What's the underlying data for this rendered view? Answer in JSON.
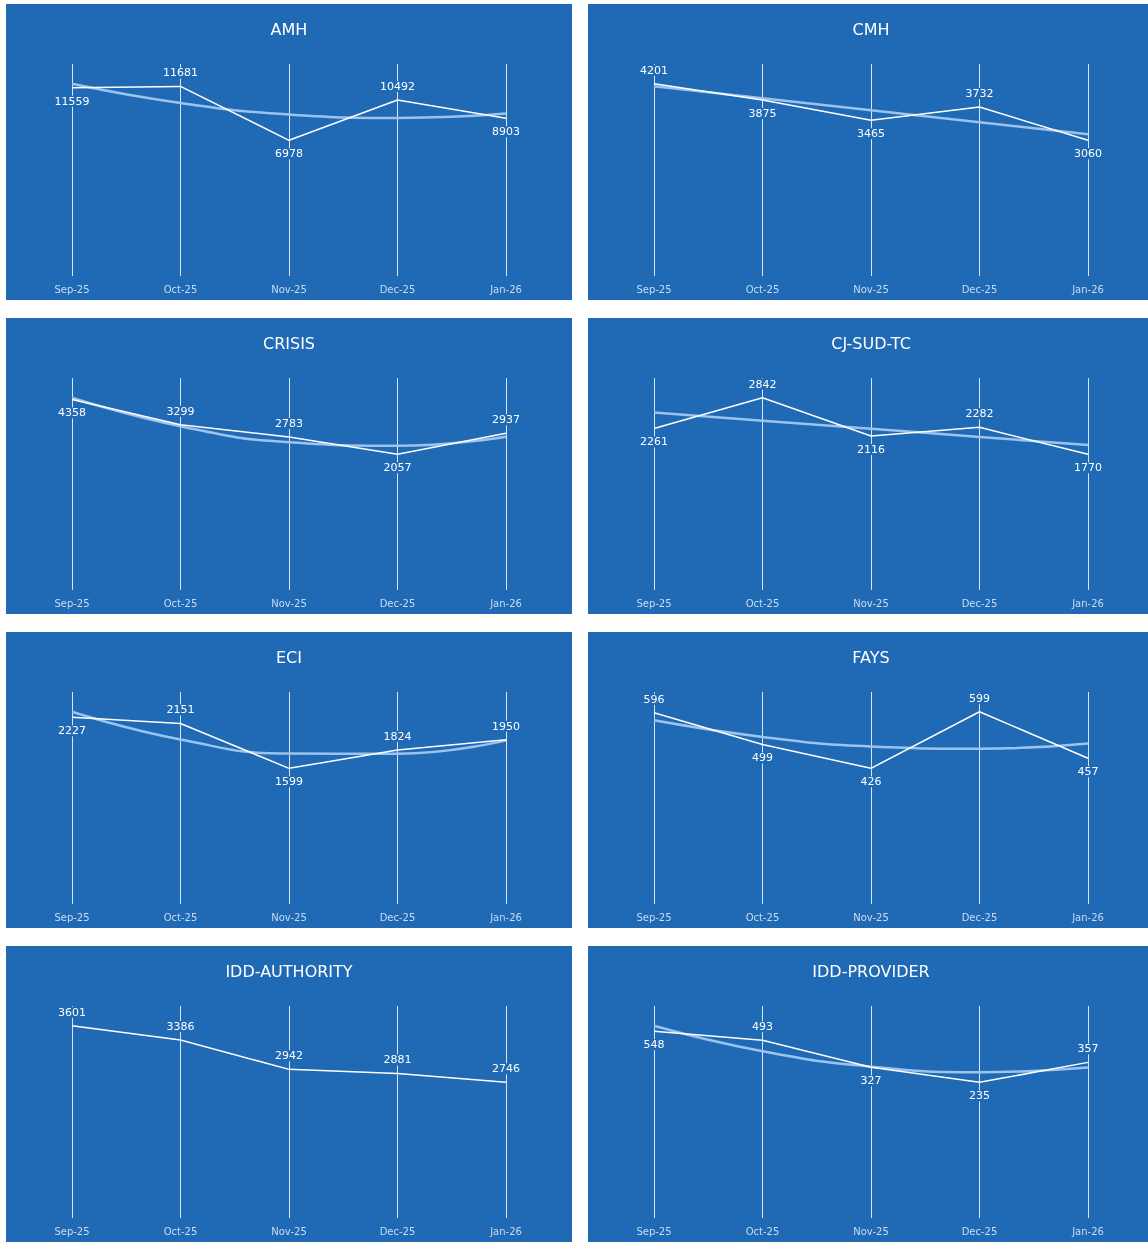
{
  "chart_data": [
    {
      "type": "line",
      "title": "AMH",
      "categories": [
        "Sep-25",
        "Oct-25",
        "Nov-25",
        "Dec-25",
        "Jan-26"
      ],
      "grid": "x",
      "marker": "none",
      "series": [
        {
          "color": "#ffffff",
          "values": [
            11559,
            11681,
            6978,
            10492,
            8903
          ],
          "value_labels": [
            "11559",
            "11681",
            "6978",
            "10492",
            "8903"
          ]
        },
        {
          "color": "#9cc3ec",
          "values": [
            11908,
            10230,
            9238,
            8930,
            9308
          ]
        }
      ]
    },
    {
      "type": "line",
      "title": "CMH",
      "categories": [
        "Sep-25",
        "Oct-25",
        "Nov-25",
        "Dec-25",
        "Jan-26"
      ],
      "grid": "x",
      "marker": "none",
      "series": [
        {
          "color": "#ffffff",
          "values": [
            4201,
            3875,
            3465,
            3732,
            3060
          ],
          "value_labels": [
            "4201",
            "3875",
            "3465",
            "3732",
            "3060"
          ]
        },
        {
          "color": "#9cc3ec",
          "values": [
            4152,
            3909,
            3667,
            3424,
            3182
          ]
        }
      ]
    },
    {
      "type": "line",
      "title": "CRISIS",
      "categories": [
        "Sep-25",
        "Oct-25",
        "Nov-25",
        "Dec-25",
        "Jan-26"
      ],
      "grid": "x",
      "marker": "none",
      "series": [
        {
          "color": "#ffffff",
          "values": [
            4358,
            3299,
            2783,
            2057,
            2937
          ],
          "value_labels": [
            "4358",
            "3299",
            "2783",
            "2057",
            "2937"
          ]
        },
        {
          "color": "#9cc3ec",
          "values": [
            4428,
            3233,
            2563,
            2416,
            2794
          ]
        }
      ]
    },
    {
      "type": "line",
      "title": "CJ-SUD-TC",
      "categories": [
        "Sep-25",
        "Oct-25",
        "Nov-25",
        "Dec-25",
        "Jan-26"
      ],
      "grid": "x",
      "marker": "none",
      "series": [
        {
          "color": "#ffffff",
          "values": [
            2261,
            2842,
            2116,
            2282,
            1770
          ],
          "value_labels": [
            "2261",
            "2842",
            "2116",
            "2282",
            "1770"
          ]
        },
        {
          "color": "#9cc3ec",
          "values": [
            2563,
            2408,
            2254,
            2100,
            1946
          ]
        }
      ]
    },
    {
      "type": "line",
      "title": "ECI",
      "categories": [
        "Sep-25",
        "Oct-25",
        "Nov-25",
        "Dec-25",
        "Jan-26"
      ],
      "grid": "x",
      "marker": "none",
      "series": [
        {
          "color": "#ffffff",
          "values": [
            2227,
            2151,
            1599,
            1824,
            1950
          ],
          "value_labels": [
            "2227",
            "2151",
            "1599",
            "1824",
            "1950"
          ]
        },
        {
          "color": "#9cc3ec",
          "values": [
            2295,
            1954,
            1781,
            1778,
            1943
          ]
        }
      ]
    },
    {
      "type": "line",
      "title": "FAYS",
      "categories": [
        "Sep-25",
        "Oct-25",
        "Nov-25",
        "Dec-25",
        "Jan-26"
      ],
      "grid": "x",
      "marker": "none",
      "series": [
        {
          "color": "#ffffff",
          "values": [
            596,
            499,
            426,
            599,
            457
          ],
          "value_labels": [
            "596",
            "499",
            "426",
            "599",
            "457"
          ]
        },
        {
          "color": "#9cc3ec",
          "values": [
            573,
            522,
            493,
            486,
            502
          ]
        }
      ]
    },
    {
      "type": "line",
      "title": "IDD-AUTHORITY",
      "categories": [
        "Sep-25",
        "Oct-25",
        "Nov-25",
        "Dec-25",
        "Jan-26"
      ],
      "grid": "x",
      "marker": "none",
      "series": [
        {
          "color": "#ffffff",
          "values": [
            3601,
            3386,
            2942,
            2881,
            2746
          ],
          "value_labels": [
            "3601",
            "3386",
            "2942",
            "2881",
            "2746"
          ]
        }
      ]
    },
    {
      "type": "line",
      "title": "IDD-PROVIDER",
      "categories": [
        "Sep-25",
        "Oct-25",
        "Nov-25",
        "Dec-25",
        "Jan-26"
      ],
      "grid": "x",
      "marker": "none",
      "series": [
        {
          "color": "#ffffff",
          "values": [
            548,
            493,
            327,
            235,
            357
          ],
          "value_labels": [
            "548",
            "493",
            "327",
            "235",
            "357"
          ]
        },
        {
          "color": "#9cc3ec",
          "values": [
            581,
            425,
            331,
            297,
            325
          ]
        }
      ]
    }
  ]
}
